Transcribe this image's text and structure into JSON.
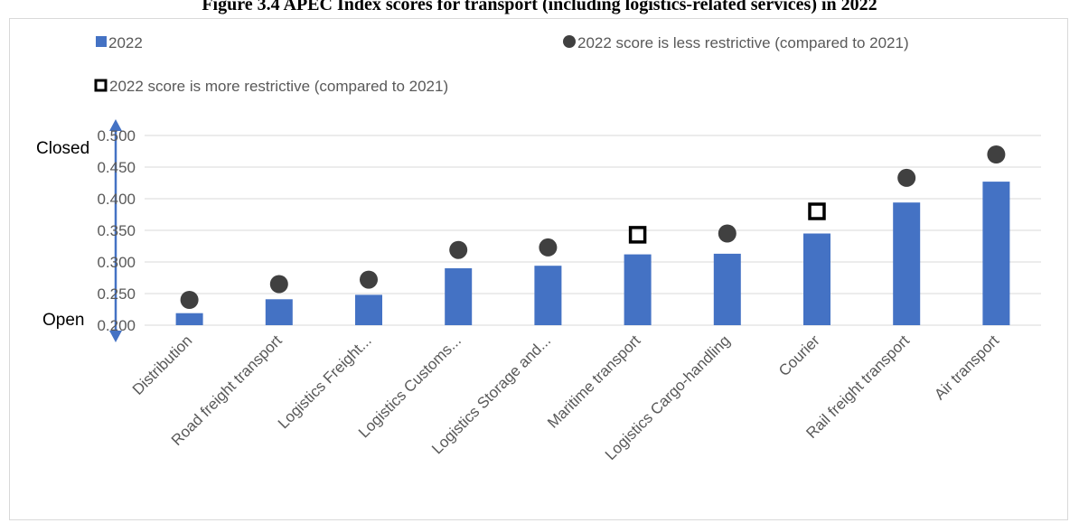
{
  "title": "Figure 3.4 APEC Index scores for transport (including logistics-related services) in 2022",
  "legend": {
    "bar": "2022",
    "less": "2022 score is less restrictive (compared to 2021)",
    "more": "2022 score is more restrictive (compared to 2021)"
  },
  "axis_side": {
    "top": "Closed",
    "bottom": "Open"
  },
  "colors": {
    "bar": "#4472c4",
    "circle": "#404040",
    "square": "#000000",
    "grid": "#d9d9d9",
    "arrow": "#4472c4"
  },
  "chart_data": {
    "type": "bar",
    "title": "Figure 3.4 APEC Index scores for transport (including logistics-related services) in 2022",
    "categories": [
      "Distribution",
      "Road freight transport",
      "Logistics Freight...",
      "Logistics Customs...",
      "Logistics Storage and...",
      "Maritime transport",
      "Logistics Cargo-handling",
      "Courier",
      "Rail freight transport",
      "Air transport"
    ],
    "ylim": [
      0.2,
      0.5
    ],
    "yticks": [
      "0.500",
      "0.450",
      "0.400",
      "0.350",
      "0.300",
      "0.250",
      "0.200"
    ],
    "grid": true,
    "legend_position": "top",
    "series": [
      {
        "name": "2022",
        "type": "bar",
        "values": [
          0.219,
          0.241,
          0.248,
          0.29,
          0.294,
          0.312,
          0.313,
          0.345,
          0.394,
          0.427
        ]
      },
      {
        "name": "2022 score is less restrictive (compared to 2021)",
        "type": "marker-circle",
        "values": [
          0.24,
          0.265,
          0.272,
          0.319,
          0.323,
          null,
          0.345,
          null,
          0.433,
          0.47
        ]
      },
      {
        "name": "2022 score is more restrictive (compared to 2021)",
        "type": "marker-square",
        "values": [
          null,
          null,
          null,
          null,
          null,
          0.343,
          null,
          0.38,
          null,
          null
        ]
      }
    ]
  }
}
